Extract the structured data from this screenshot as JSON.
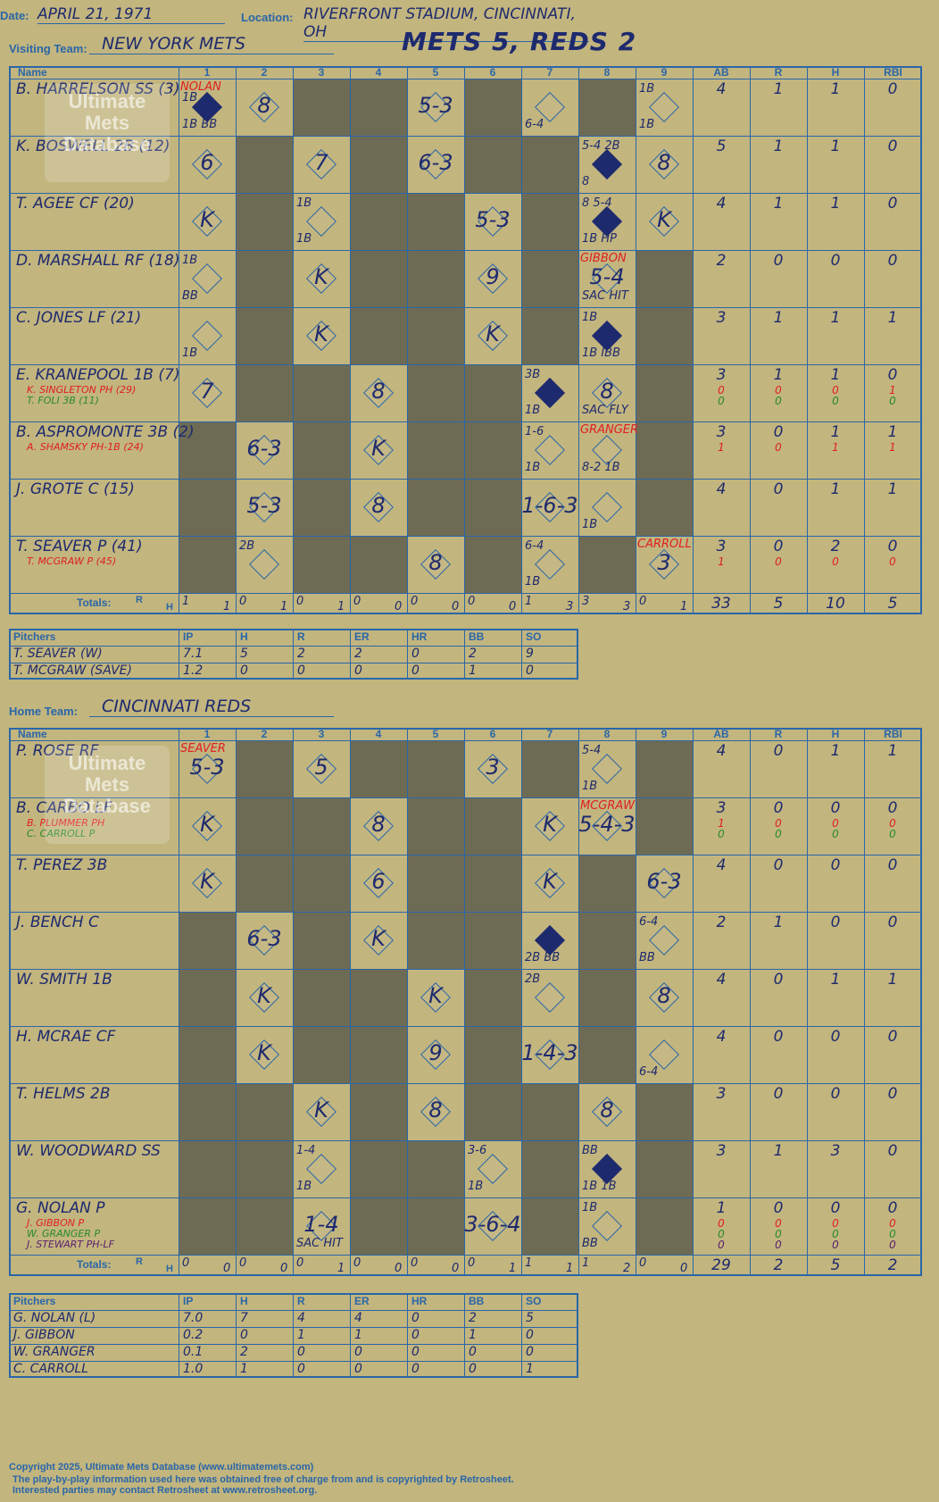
{
  "header": {
    "date_label": "Date:",
    "date": "APRIL 21, 1971",
    "location_label": "Location:",
    "location": "RIVERFRONT STADIUM, CINCINNATI, OH",
    "visiting_label": "Visiting Team:",
    "visiting_team": "NEW YORK METS",
    "headline": "METS 5, REDS 2",
    "home_label": "Home Team:",
    "home_team": "CINCINNATI REDS"
  },
  "columns": {
    "name": "Name",
    "innings": [
      "1",
      "2",
      "3",
      "4",
      "5",
      "6",
      "7",
      "8",
      "9"
    ],
    "stats": [
      "AB",
      "R",
      "H",
      "RBI"
    ],
    "totals": "Totals:",
    "r": "R",
    "h": "H"
  },
  "logo": {
    "line1": "Ultimate",
    "line2": "Mets",
    "line3": "Database",
    "url": "ultimatemets.com"
  },
  "visitors": {
    "players": [
      {
        "name": "B. HARRELSON SS (3)",
        "subs": [],
        "ab": [
          "4"
        ],
        "r": [
          "1"
        ],
        "h": [
          "1"
        ],
        "rbi": [
          "0"
        ]
      },
      {
        "name": "K. BOSWELL 2B (12)",
        "subs": [],
        "ab": [
          "5"
        ],
        "r": [
          "1"
        ],
        "h": [
          "1"
        ],
        "rbi": [
          "0"
        ]
      },
      {
        "name": "T. AGEE CF (20)",
        "subs": [],
        "ab": [
          "4"
        ],
        "r": [
          "1"
        ],
        "h": [
          "1"
        ],
        "rbi": [
          "0"
        ]
      },
      {
        "name": "D. MARSHALL RF (18)",
        "subs": [],
        "ab": [
          "2"
        ],
        "r": [
          "0"
        ],
        "h": [
          "0"
        ],
        "rbi": [
          "0"
        ]
      },
      {
        "name": "C. JONES LF (21)",
        "subs": [],
        "ab": [
          "3"
        ],
        "r": [
          "1"
        ],
        "h": [
          "1"
        ],
        "rbi": [
          "1"
        ]
      },
      {
        "name": "E. KRANEPOOL 1B (7)",
        "subs": [
          {
            "name": "K. SINGLETON PH (29)",
            "color": "red"
          },
          {
            "name": "T. FOLI 3B (11)",
            "color": "green"
          }
        ],
        "ab": [
          "3",
          "0",
          "0"
        ],
        "r": [
          "1",
          "0",
          "0"
        ],
        "h": [
          "1",
          "0",
          "0"
        ],
        "rbi": [
          "0",
          "1",
          "0"
        ]
      },
      {
        "name": "B. ASPROMONTE 3B (2)",
        "subs": [
          {
            "name": "A. SHAMSKY PH-1B (24)",
            "color": "red"
          }
        ],
        "ab": [
          "3",
          "1"
        ],
        "r": [
          "0",
          "0"
        ],
        "h": [
          "1",
          "1"
        ],
        "rbi": [
          "1",
          "1"
        ]
      },
      {
        "name": "J. GROTE C (15)",
        "subs": [],
        "ab": [
          "4"
        ],
        "r": [
          "0"
        ],
        "h": [
          "1"
        ],
        "rbi": [
          "1"
        ]
      },
      {
        "name": "T. SEAVER P (41)",
        "subs": [
          {
            "name": "T. MCGRAW P (45)",
            "color": "red"
          }
        ],
        "ab": [
          "3",
          "1"
        ],
        "r": [
          "0",
          "0"
        ],
        "h": [
          "2",
          "0"
        ],
        "rbi": [
          "0",
          "0"
        ]
      }
    ],
    "inning_totals": [
      [
        "1",
        "1"
      ],
      [
        "0",
        "1"
      ],
      [
        "0",
        "1"
      ],
      [
        "0",
        "0"
      ],
      [
        "0",
        "0"
      ],
      [
        "0",
        "0"
      ],
      [
        "1",
        "3"
      ],
      [
        "3",
        "3"
      ],
      [
        "0",
        "1"
      ]
    ],
    "totals": [
      "33",
      "5",
      "10",
      "5"
    ],
    "plays": [
      [
        0,
        0,
        "",
        "NOLAN",
        "1B",
        "1B BB",
        true
      ],
      [
        0,
        1,
        "8"
      ],
      [
        0,
        4,
        "5-3"
      ],
      [
        0,
        6,
        "",
        "",
        "",
        "6-4",
        false
      ],
      [
        0,
        8,
        "",
        "",
        "1B",
        "1B",
        false
      ],
      [
        1,
        0,
        "6"
      ],
      [
        1,
        2,
        "7"
      ],
      [
        1,
        4,
        "6-3"
      ],
      [
        1,
        7,
        "",
        "",
        "5-4 2B",
        "8",
        true
      ],
      [
        1,
        8,
        "8"
      ],
      [
        2,
        0,
        "K"
      ],
      [
        2,
        2,
        "",
        "",
        "1B",
        "1B",
        false
      ],
      [
        2,
        5,
        "5-3"
      ],
      [
        2,
        7,
        "",
        "",
        "8  5-4",
        "1B  HP",
        true
      ],
      [
        2,
        8,
        "K"
      ],
      [
        3,
        0,
        "",
        "",
        "1B",
        "BB",
        false
      ],
      [
        3,
        2,
        "K"
      ],
      [
        3,
        5,
        "9"
      ],
      [
        3,
        7,
        "5-4",
        "GIBBON",
        "",
        "SAC HIT",
        false
      ],
      [
        4,
        0,
        "",
        "",
        "",
        "1B",
        false
      ],
      [
        4,
        2,
        "K"
      ],
      [
        4,
        5,
        "K"
      ],
      [
        4,
        7,
        "",
        "",
        "1B",
        "1B  IBB",
        true
      ],
      [
        5,
        0,
        "7"
      ],
      [
        5,
        3,
        "8"
      ],
      [
        5,
        6,
        "",
        "",
        "3B",
        "1B",
        true
      ],
      [
        5,
        7,
        "8",
        "",
        "",
        "SAC FLY",
        false
      ],
      [
        6,
        1,
        "6-3"
      ],
      [
        6,
        3,
        "K"
      ],
      [
        6,
        6,
        "",
        "",
        "1-6",
        "1B",
        false
      ],
      [
        6,
        7,
        "",
        "GRANGER",
        "",
        "8-2  1B",
        false
      ],
      [
        7,
        1,
        "5-3"
      ],
      [
        7,
        3,
        "8"
      ],
      [
        7,
        6,
        "1-6-3"
      ],
      [
        7,
        7,
        "",
        "",
        "",
        "1B",
        false
      ],
      [
        8,
        1,
        "",
        "",
        "2B",
        "",
        false
      ],
      [
        8,
        4,
        "8"
      ],
      [
        8,
        6,
        "",
        "",
        "6-4",
        "1B",
        false
      ],
      [
        8,
        8,
        "3",
        "CARROLL",
        "",
        "",
        false
      ]
    ]
  },
  "visitor_pitchers": {
    "headers": [
      "Pitchers",
      "IP",
      "H",
      "R",
      "ER",
      "HR",
      "BB",
      "SO"
    ],
    "rows": [
      [
        "T. SEAVER (W)",
        "7.1",
        "5",
        "2",
        "2",
        "0",
        "2",
        "9"
      ],
      [
        "T. MCGRAW (SAVE)",
        "1.2",
        "0",
        "0",
        "0",
        "0",
        "1",
        "0"
      ]
    ]
  },
  "home": {
    "players": [
      {
        "name": "P. ROSE RF",
        "subs": [],
        "ab": [
          "4"
        ],
        "r": [
          "0"
        ],
        "h": [
          "1"
        ],
        "rbi": [
          "1"
        ]
      },
      {
        "name": "B. CARBO LF",
        "subs": [
          {
            "name": "B. PLUMMER PH",
            "color": "red"
          },
          {
            "name": "C. CARROLL P",
            "color": "green"
          }
        ],
        "ab": [
          "3",
          "1",
          "0"
        ],
        "r": [
          "0",
          "0",
          "0"
        ],
        "h": [
          "0",
          "0",
          "0"
        ],
        "rbi": [
          "0",
          "0",
          "0"
        ]
      },
      {
        "name": "T. PEREZ 3B",
        "subs": [],
        "ab": [
          "4"
        ],
        "r": [
          "0"
        ],
        "h": [
          "0"
        ],
        "rbi": [
          "0"
        ]
      },
      {
        "name": "J. BENCH C",
        "subs": [],
        "ab": [
          "2"
        ],
        "r": [
          "1"
        ],
        "h": [
          "0"
        ],
        "rbi": [
          "0"
        ]
      },
      {
        "name": "W. SMITH 1B",
        "subs": [],
        "ab": [
          "4"
        ],
        "r": [
          "0"
        ],
        "h": [
          "1"
        ],
        "rbi": [
          "1"
        ]
      },
      {
        "name": "H. MCRAE CF",
        "subs": [],
        "ab": [
          "4"
        ],
        "r": [
          "0"
        ],
        "h": [
          "0"
        ],
        "rbi": [
          "0"
        ]
      },
      {
        "name": "T. HELMS 2B",
        "subs": [],
        "ab": [
          "3"
        ],
        "r": [
          "0"
        ],
        "h": [
          "0"
        ],
        "rbi": [
          "0"
        ]
      },
      {
        "name": "W. WOODWARD SS",
        "subs": [],
        "ab": [
          "3"
        ],
        "r": [
          "1"
        ],
        "h": [
          "3"
        ],
        "rbi": [
          "0"
        ]
      },
      {
        "name": "G. NOLAN P",
        "subs": [
          {
            "name": "J. GIBBON P",
            "color": "red"
          },
          {
            "name": "W. GRANGER P",
            "color": "green"
          },
          {
            "name": "J. STEWART PH-LF",
            "color": "purple"
          }
        ],
        "ab": [
          "1",
          "0",
          "0",
          "0"
        ],
        "r": [
          "0",
          "0",
          "0",
          "0"
        ],
        "h": [
          "0",
          "0",
          "0",
          "0"
        ],
        "rbi": [
          "0",
          "0",
          "0",
          "0"
        ]
      }
    ],
    "inning_totals": [
      [
        "0",
        "0"
      ],
      [
        "0",
        "0"
      ],
      [
        "0",
        "1"
      ],
      [
        "0",
        "0"
      ],
      [
        "0",
        "0"
      ],
      [
        "0",
        "1"
      ],
      [
        "1",
        "1"
      ],
      [
        "1",
        "2"
      ],
      [
        "0",
        "0"
      ]
    ],
    "totals": [
      "29",
      "2",
      "5",
      "2"
    ],
    "plays": [
      [
        0,
        0,
        "5-3",
        "SEAVER",
        "",
        ""
      ],
      [
        0,
        2,
        "5"
      ],
      [
        0,
        5,
        "3"
      ],
      [
        0,
        7,
        "",
        "",
        "5-4",
        "1B",
        false
      ],
      [
        1,
        0,
        "K"
      ],
      [
        1,
        3,
        "8"
      ],
      [
        1,
        6,
        "K"
      ],
      [
        1,
        7,
        "5-4-3",
        "MCGRAW",
        "",
        ""
      ],
      [
        2,
        0,
        "K"
      ],
      [
        2,
        3,
        "6"
      ],
      [
        2,
        6,
        "K"
      ],
      [
        2,
        8,
        "6-3"
      ],
      [
        3,
        1,
        "6-3"
      ],
      [
        3,
        3,
        "K"
      ],
      [
        3,
        6,
        "",
        "",
        "",
        "2B  BB",
        true
      ],
      [
        3,
        8,
        "",
        "",
        "6-4",
        "BB",
        false
      ],
      [
        4,
        1,
        "K"
      ],
      [
        4,
        4,
        "K"
      ],
      [
        4,
        6,
        "",
        "",
        "2B",
        "",
        false
      ],
      [
        4,
        8,
        "8"
      ],
      [
        5,
        1,
        "K"
      ],
      [
        5,
        4,
        "9"
      ],
      [
        5,
        6,
        "1-4-3"
      ],
      [
        5,
        8,
        "",
        "",
        "",
        "6-4",
        false
      ],
      [
        6,
        2,
        "K"
      ],
      [
        6,
        4,
        "8"
      ],
      [
        6,
        7,
        "8"
      ],
      [
        7,
        2,
        "",
        "",
        "1-4",
        "1B",
        false
      ],
      [
        7,
        5,
        "",
        "",
        "3-6",
        "1B",
        false
      ],
      [
        7,
        7,
        "",
        "",
        "BB",
        "1B  1B",
        true
      ],
      [
        8,
        2,
        "1-4",
        "",
        "",
        "SAC HIT",
        false
      ],
      [
        8,
        5,
        "3-6-4"
      ],
      [
        8,
        7,
        "",
        "",
        "1B",
        "BB",
        false
      ]
    ]
  },
  "home_pitchers": {
    "headers": [
      "Pitchers",
      "IP",
      "H",
      "R",
      "ER",
      "HR",
      "BB",
      "SO"
    ],
    "rows": [
      [
        "G. NOLAN (L)",
        "7.0",
        "7",
        "4",
        "4",
        "0",
        "2",
        "5"
      ],
      [
        "J. GIBBON",
        "0.2",
        "0",
        "1",
        "1",
        "0",
        "1",
        "0"
      ],
      [
        "W. GRANGER",
        "0.1",
        "2",
        "0",
        "0",
        "0",
        "0",
        "0"
      ],
      [
        "C. CARROLL",
        "1.0",
        "1",
        "0",
        "0",
        "0",
        "0",
        "1"
      ]
    ]
  },
  "footer": {
    "line1": "Copyright 2025, Ultimate Mets Database (www.ultimatemets.com)",
    "line2": "The play-by-play information used here was obtained free of charge from and is copyrighted by Retrosheet.",
    "line3": "Interested parties may contact Retrosheet at www.retrosheet.org."
  },
  "colors": {
    "background": "#c2b57e",
    "ink": "#1e2a6e",
    "grid": "#2a66a8",
    "dead": "#6e6b55",
    "red": "#e02020",
    "green": "#2a8a2a"
  }
}
